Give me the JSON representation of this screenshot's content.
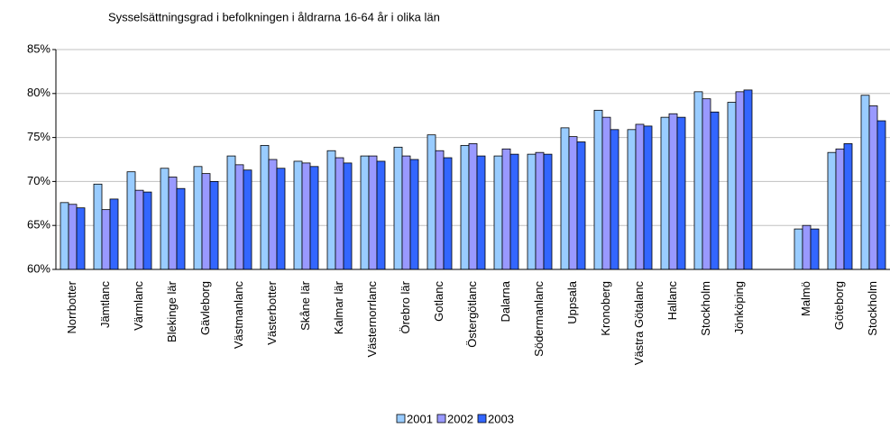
{
  "chart_data": {
    "type": "bar",
    "title": "Sysselsättningsgrad i befolkningen i åldrarna 16-64 år i olika län",
    "categories": [
      "Norrbotter",
      "Jämtlanc",
      "Värmlanc",
      "Blekinge lär",
      "Gävleborg",
      "Västmanlanc",
      "Västerbotter",
      "Skåne lär",
      "Kalmar lär",
      "Västernorrlanc",
      "Örebro lär",
      "Gotlanc",
      "Östergötlanc",
      "Dalarna",
      "Södermanlanc",
      "Uppsala",
      "Kronoberg",
      "Västra Götalanc",
      "Hallanc",
      "Stockholm",
      "Jönköping",
      null,
      "Malmö",
      "Göteborg",
      "Stockholm"
    ],
    "series": [
      {
        "name": "2001",
        "color": "#99ccff",
        "values": [
          67.6,
          69.7,
          71.1,
          71.5,
          71.7,
          72.9,
          74.1,
          72.3,
          73.5,
          72.9,
          73.9,
          75.3,
          74.1,
          72.9,
          73.1,
          76.1,
          78.1,
          75.9,
          77.3,
          80.2,
          79.0,
          null,
          64.6,
          73.3,
          79.8
        ]
      },
      {
        "name": "2002",
        "color": "#9999ff",
        "values": [
          67.4,
          66.8,
          69.0,
          70.5,
          70.9,
          71.9,
          72.5,
          72.1,
          72.7,
          72.9,
          72.9,
          73.5,
          74.3,
          73.7,
          73.3,
          75.1,
          77.3,
          76.5,
          77.7,
          79.4,
          80.2,
          null,
          65.0,
          73.7,
          78.6
        ]
      },
      {
        "name": "2003",
        "color": "#3366ff",
        "values": [
          67.0,
          68.0,
          68.8,
          69.2,
          70.0,
          71.3,
          71.5,
          71.7,
          72.1,
          72.3,
          72.5,
          72.7,
          72.9,
          73.1,
          73.1,
          74.5,
          75.9,
          76.3,
          77.3,
          77.9,
          80.4,
          null,
          64.6,
          74.3,
          76.9
        ]
      }
    ],
    "ylim": [
      60,
      85
    ],
    "yticks": [
      {
        "value": 60,
        "label": "60%"
      },
      {
        "value": 65,
        "label": "65%"
      },
      {
        "value": 70,
        "label": "70%"
      },
      {
        "value": 75,
        "label": "75%"
      },
      {
        "value": 80,
        "label": "80%"
      },
      {
        "value": 85,
        "label": "85%"
      }
    ],
    "grid": true,
    "legend": "bottom"
  }
}
